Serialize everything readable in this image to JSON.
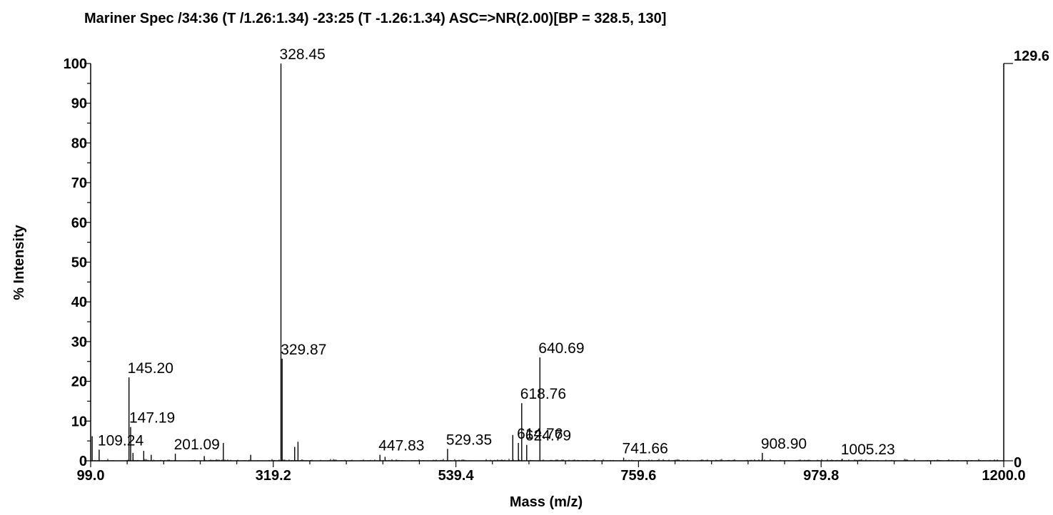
{
  "chart_data": {
    "type": "line",
    "title": "Mariner Spec /34:36 (T /1.26:1.34) -23:25 (T -1.26:1.34)  ASC=>NR(2.00)[BP = 328.5, 130]",
    "xlabel": "Mass (m/z)",
    "ylabel": "% Intensity",
    "xlim": [
      99.0,
      1200.0
    ],
    "ylim": [
      0,
      100
    ],
    "x_ticks": [
      "99.0",
      "319.2",
      "539.4",
      "759.6",
      "979.8",
      "1200.0"
    ],
    "y_ticks": [
      "0",
      "10",
      "20",
      "30",
      "40",
      "50",
      "60",
      "70",
      "80",
      "90",
      "100"
    ],
    "right_axis": {
      "top_label": "129.6",
      "bottom_label": "0"
    },
    "peaks": [
      {
        "mz": 100.8,
        "intensity": 6.2
      },
      {
        "mz": 109.24,
        "intensity": 2.8
      },
      {
        "mz": 145.2,
        "intensity": 21.0
      },
      {
        "mz": 147.19,
        "intensity": 8.5
      },
      {
        "mz": 150.0,
        "intensity": 2.0
      },
      {
        "mz": 163.0,
        "intensity": 2.5
      },
      {
        "mz": 172.0,
        "intensity": 1.5
      },
      {
        "mz": 201.09,
        "intensity": 1.8
      },
      {
        "mz": 236.0,
        "intensity": 1.2
      },
      {
        "mz": 259.0,
        "intensity": 4.5
      },
      {
        "mz": 292.0,
        "intensity": 1.5
      },
      {
        "mz": 328.45,
        "intensity": 100.0
      },
      {
        "mz": 329.87,
        "intensity": 25.7
      },
      {
        "mz": 345.0,
        "intensity": 3.5
      },
      {
        "mz": 349.0,
        "intensity": 4.8
      },
      {
        "mz": 447.83,
        "intensity": 1.5
      },
      {
        "mz": 454.0,
        "intensity": 1.0
      },
      {
        "mz": 529.35,
        "intensity": 3.0
      },
      {
        "mz": 608.0,
        "intensity": 6.5
      },
      {
        "mz": 614.76,
        "intensity": 4.5
      },
      {
        "mz": 618.76,
        "intensity": 14.5
      },
      {
        "mz": 624.79,
        "intensity": 4.0
      },
      {
        "mz": 640.69,
        "intensity": 26.0
      },
      {
        "mz": 741.66,
        "intensity": 0.8
      },
      {
        "mz": 908.9,
        "intensity": 2.0
      },
      {
        "mz": 1005.23,
        "intensity": 0.5
      }
    ],
    "peak_labels": [
      {
        "text": "109.24",
        "mz": 109.24,
        "intensity": 2.8
      },
      {
        "text": "145.20",
        "mz": 145.2,
        "intensity": 21.0
      },
      {
        "text": "147.19",
        "mz": 147.19,
        "intensity": 8.5
      },
      {
        "text": "201.09",
        "mz": 201.09,
        "intensity": 1.8
      },
      {
        "text": "328.45",
        "mz": 328.45,
        "intensity": 100.0
      },
      {
        "text": "329.87",
        "mz": 329.87,
        "intensity": 25.7
      },
      {
        "text": "447.83",
        "mz": 447.83,
        "intensity": 1.5
      },
      {
        "text": "529.35",
        "mz": 529.35,
        "intensity": 3.0
      },
      {
        "text": "614.76",
        "mz": 614.76,
        "intensity": 4.5
      },
      {
        "text": "618.76",
        "mz": 618.76,
        "intensity": 14.5
      },
      {
        "text": "624.79",
        "mz": 624.79,
        "intensity": 4.0
      },
      {
        "text": "640.69",
        "mz": 640.69,
        "intensity": 26.0
      },
      {
        "text": "741.66",
        "mz": 741.66,
        "intensity": 0.8
      },
      {
        "text": "908.90",
        "mz": 908.9,
        "intensity": 2.0
      },
      {
        "text": "1005.23",
        "mz": 1005.23,
        "intensity": 0.5
      }
    ],
    "grid": false,
    "color": "#000000"
  }
}
